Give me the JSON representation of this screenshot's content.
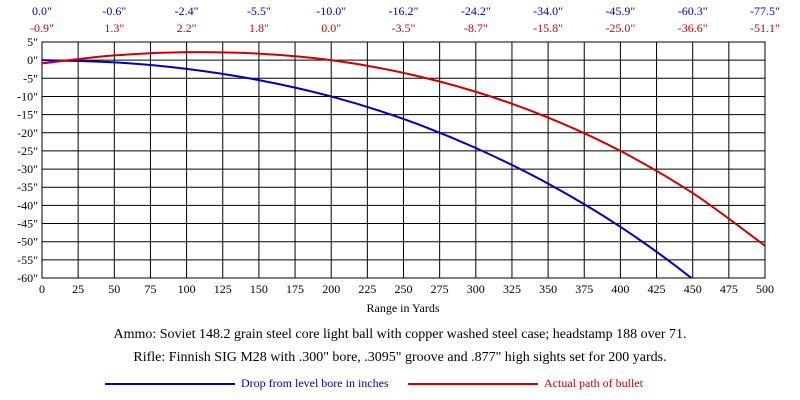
{
  "chart_data": {
    "type": "line",
    "xlabel": "Range in Yards",
    "x_ticks": [
      0,
      25,
      50,
      75,
      100,
      125,
      150,
      175,
      200,
      225,
      250,
      275,
      300,
      325,
      350,
      375,
      400,
      425,
      450,
      475,
      500
    ],
    "y_ticks": [
      5,
      0,
      -5,
      -10,
      -15,
      -20,
      -25,
      -30,
      -35,
      -40,
      -45,
      -50,
      -55,
      -60
    ],
    "y_tick_labels": [
      "5\"",
      "0\"",
      "-5\"",
      "-10\"",
      "-15\"",
      "-20\"",
      "-25\"",
      "-30\"",
      "-35\"",
      "-40\"",
      "-45\"",
      "-50\"",
      "-55\"",
      "-60\""
    ],
    "xlim": [
      0,
      500
    ],
    "ylim": [
      -60,
      5
    ],
    "grid": true,
    "top_table": {
      "x": [
        0,
        50,
        100,
        150,
        200,
        250,
        300,
        350,
        400,
        450,
        500
      ],
      "drop_row": [
        "0.0\"",
        "-0.6\"",
        "-2.4\"",
        "-5.5\"",
        "-10.0\"",
        "-16.2\"",
        "-24.2\"",
        "-34.0\"",
        "-45.9\"",
        "-60.3\"",
        "-77.5\""
      ],
      "path_row": [
        "-0.9\"",
        "1.3\"",
        "2.2\"",
        "1.8\"",
        "0.0\"",
        "-3.5\"",
        "-8.7\"",
        "-15.8\"",
        "-25.0\"",
        "-36.6\"",
        "-51.1\""
      ]
    },
    "series": [
      {
        "name": "Drop from level bore in inches",
        "color": "#0000c0",
        "x": [
          0,
          50,
          100,
          150,
          200,
          250,
          300,
          350,
          400,
          450,
          500
        ],
        "values": [
          0.0,
          -0.6,
          -2.4,
          -5.5,
          -10.0,
          -16.2,
          -24.2,
          -34.0,
          -45.9,
          -60.3,
          -77.5
        ]
      },
      {
        "name": "Actual path of bullet",
        "color": "#d00000",
        "x": [
          0,
          50,
          100,
          150,
          200,
          250,
          300,
          350,
          400,
          450,
          500
        ],
        "values": [
          -0.9,
          1.3,
          2.2,
          1.8,
          0.0,
          -3.5,
          -8.7,
          -15.8,
          -25.0,
          -36.6,
          -51.1
        ]
      }
    ]
  },
  "captions": {
    "ammo": "Ammo:  Soviet 148.2 grain steel core light ball with copper washed steel case; headstamp 188 over 71.",
    "rifle": "Rifle:  Finnish SIG M28 with .300\" bore, .3095\" groove and .877\" high sights set for 200 yards."
  }
}
